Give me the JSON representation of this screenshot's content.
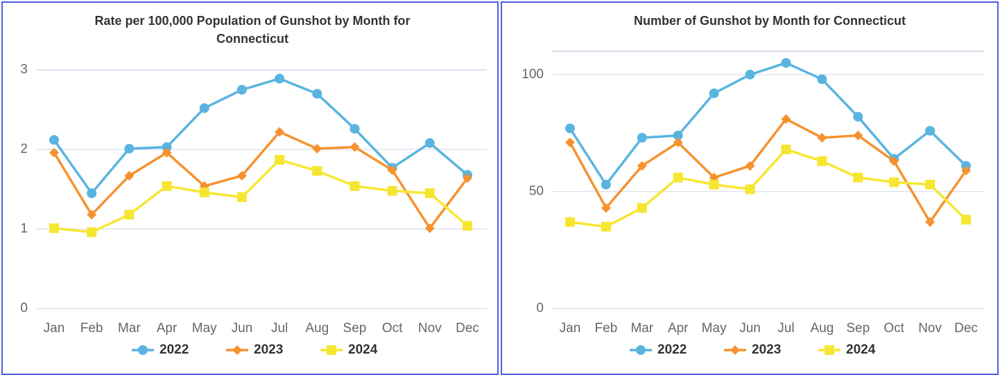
{
  "chart_data": [
    {
      "type": "line",
      "title": "Rate per 100,000 Population of Gunshot by Month for Connecticut",
      "categories": [
        "Jan",
        "Feb",
        "Mar",
        "Apr",
        "May",
        "Jun",
        "Jul",
        "Aug",
        "Sep",
        "Oct",
        "Nov",
        "Dec"
      ],
      "ylim": [
        0,
        3
      ],
      "yticks": [
        0,
        1,
        2,
        3
      ],
      "grid": true,
      "legend": "bottom",
      "series": [
        {
          "name": "2022",
          "color": "#5ab4e0",
          "marker": "circle",
          "values": [
            2.12,
            1.45,
            2.01,
            2.03,
            2.52,
            2.75,
            2.89,
            2.7,
            2.26,
            1.77,
            2.08,
            1.68
          ]
        },
        {
          "name": "2023",
          "color": "#f5922f",
          "marker": "diamond",
          "values": [
            1.96,
            1.18,
            1.67,
            1.96,
            1.54,
            1.67,
            2.22,
            2.01,
            2.03,
            1.74,
            1.01,
            1.64
          ]
        },
        {
          "name": "2024",
          "color": "#f7e631",
          "marker": "square",
          "values": [
            1.01,
            0.96,
            1.18,
            1.54,
            1.46,
            1.4,
            1.87,
            1.73,
            1.54,
            1.48,
            1.45,
            1.04
          ]
        }
      ]
    },
    {
      "type": "line",
      "title": "Number of Gunshot by Month for Connecticut",
      "categories": [
        "Jan",
        "Feb",
        "Mar",
        "Apr",
        "May",
        "Jun",
        "Jul",
        "Aug",
        "Sep",
        "Oct",
        "Nov",
        "Dec"
      ],
      "ylim": [
        0,
        110
      ],
      "yticks": [
        0,
        50,
        100
      ],
      "grid": true,
      "legend": "bottom",
      "series": [
        {
          "name": "2022",
          "color": "#5ab4e0",
          "marker": "circle",
          "values": [
            77,
            53,
            73,
            74,
            92,
            100,
            105,
            98,
            82,
            64,
            76,
            61
          ]
        },
        {
          "name": "2023",
          "color": "#f5922f",
          "marker": "diamond",
          "values": [
            71,
            43,
            61,
            71,
            56,
            61,
            81,
            73,
            74,
            63,
            37,
            59
          ]
        },
        {
          "name": "2024",
          "color": "#f7e631",
          "marker": "square",
          "values": [
            37,
            35,
            43,
            56,
            53,
            51,
            68,
            63,
            56,
            54,
            53,
            38
          ]
        }
      ]
    }
  ]
}
